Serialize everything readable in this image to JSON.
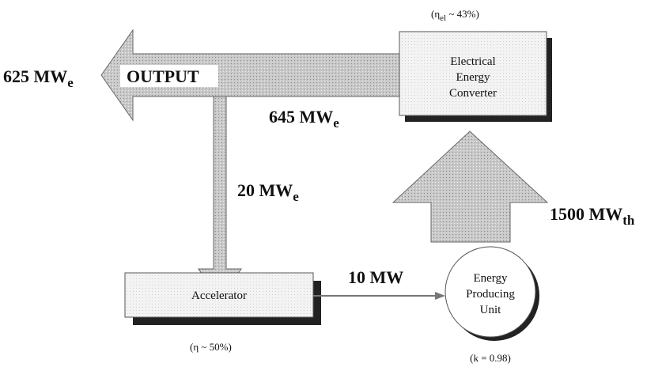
{
  "output_label": "OUTPUT",
  "flows": {
    "net_output": {
      "main": "625 MW",
      "sub": "e"
    },
    "converter_output": {
      "main": "645 MW",
      "sub": "e"
    },
    "to_accelerator": {
      "main": "20 MW",
      "sub": "e"
    },
    "thermal_input": {
      "main": "1500 MW",
      "sub": "th"
    },
    "beam": {
      "main": "10 MW"
    }
  },
  "nodes": [
    {
      "lines": [
        "Electrical",
        "Energy",
        "Converter"
      ],
      "note": {
        "prefix": "(η",
        "sub": "el",
        "suffix": " ~ 43%)"
      }
    },
    {
      "lines": [
        "Accelerator"
      ],
      "note": {
        "prefix": "(η ~ 50%)"
      }
    },
    {
      "lines": [
        "Energy",
        "Producing",
        "Unit"
      ],
      "note": {
        "prefix": "(k = 0.98)"
      }
    }
  ]
}
